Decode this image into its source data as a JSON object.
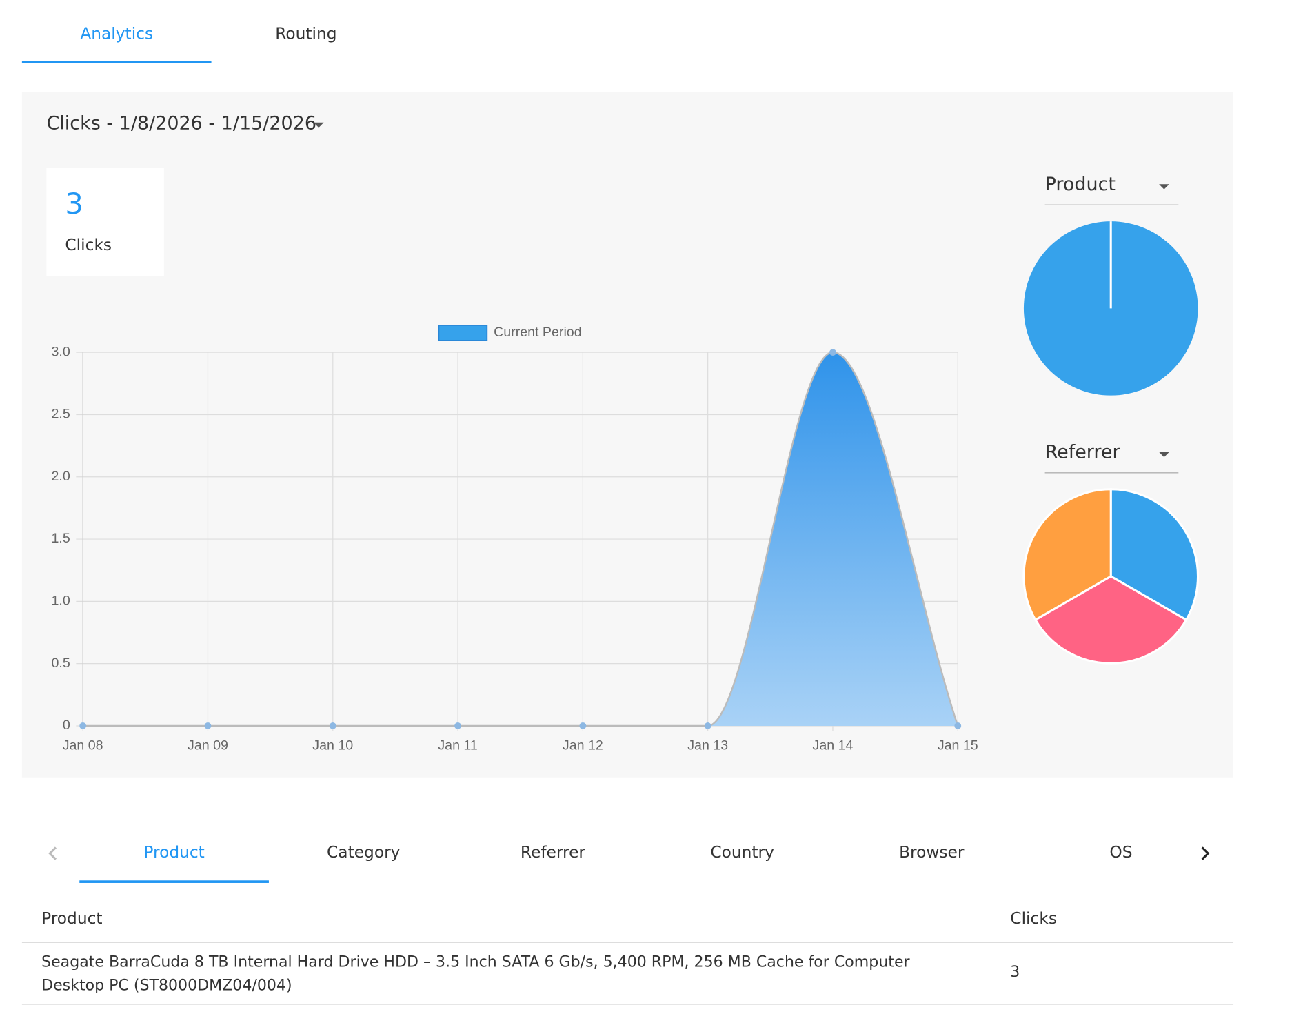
{
  "tabs": [
    "Analytics",
    "Routing"
  ],
  "panel": {
    "title": "Clicks - 1/8/2026 - 1/15/2026",
    "stat": {
      "value": "3",
      "label": "Clicks"
    }
  },
  "chart_data": [
    {
      "type": "line",
      "categories": [
        "Jan 08",
        "Jan 09",
        "Jan 10",
        "Jan 11",
        "Jan 12",
        "Jan 13",
        "Jan 14",
        "Jan 15"
      ],
      "series": [
        {
          "name": "Current Period",
          "color": "#36a2eb",
          "values": [
            0,
            0,
            0,
            0,
            0,
            0,
            3,
            0
          ]
        }
      ],
      "ylim": [
        0,
        3
      ],
      "yticks": [
        0,
        0.5,
        {
          "value": 1,
          "label": "1.0"
        },
        1.5,
        {
          "value": 2,
          "label": "2.0"
        },
        2.5,
        {
          "value": 3,
          "label": "3.0"
        }
      ],
      "grid": true,
      "fill": true,
      "legend": "top"
    },
    {
      "type": "pie",
      "title": "Product",
      "categories": [
        null
      ],
      "values": [
        3
      ],
      "colors": [
        "#36a2eb"
      ]
    },
    {
      "type": "pie",
      "title": "Referrer",
      "categories": [
        null,
        null,
        null
      ],
      "values": [
        1,
        1,
        1
      ],
      "colors": [
        "#36a2eb",
        "#ff6384",
        "#ff9f40"
      ]
    }
  ],
  "breakdown_tabs": [
    "Product",
    "Category",
    "Referrer",
    "Country",
    "Browser",
    "OS"
  ],
  "table": {
    "header": [
      "Product",
      "Clicks"
    ],
    "rows": [
      [
        "Seagate BarraCuda 8 TB Internal Hard Drive HDD – 3.5 Inch SATA 6 Gb/s, 5,400 RPM, 256 MB Cache for Computer Desktop PC (ST8000DMZ04/004)",
        "3"
      ]
    ]
  }
}
